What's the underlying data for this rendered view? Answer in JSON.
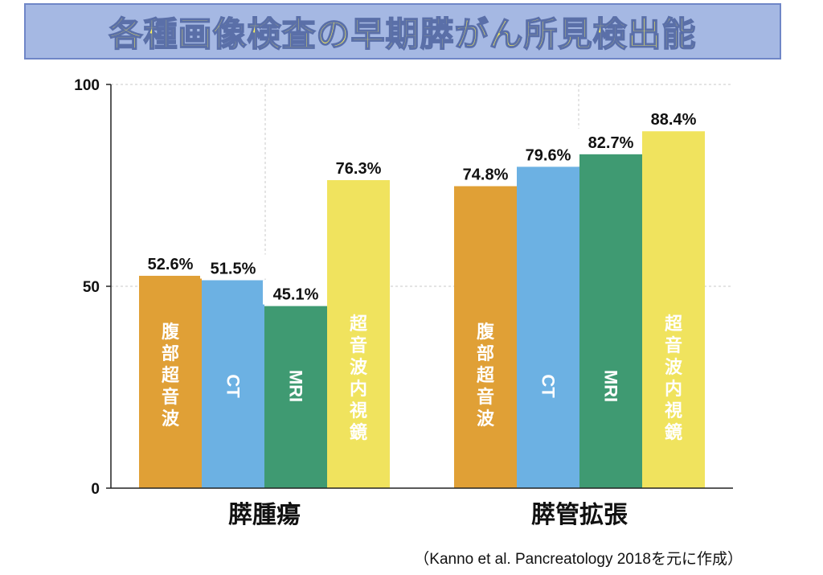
{
  "title": "各種画像検査の早期膵がん所見検出能",
  "chart_data": {
    "type": "bar",
    "categories": [
      "膵腫瘍",
      "膵管拡張"
    ],
    "series": [
      {
        "name": "腹部超音波",
        "color": "#e0a036",
        "values": [
          52.6,
          74.8
        ],
        "value_labels": [
          "52.6%",
          "74.8%"
        ]
      },
      {
        "name": "CT",
        "color": "#6cb1e3",
        "values": [
          51.5,
          79.6
        ],
        "value_labels": [
          "51.5%",
          "79.6%"
        ]
      },
      {
        "name": "MRI",
        "color": "#3f9a72",
        "values": [
          45.1,
          82.7
        ],
        "value_labels": [
          "45.1%",
          "82.7%"
        ]
      },
      {
        "name": "超音波内視鏡",
        "color": "#f0e35e",
        "values": [
          76.3,
          88.4
        ],
        "value_labels": [
          "76.3%",
          "88.4%"
        ]
      }
    ],
    "ylim": [
      0,
      100
    ],
    "yticks": [
      "0",
      "50",
      "100"
    ],
    "grid": true
  },
  "citation": "（Kanno et al. Pancreatology 2018を元に作成）"
}
